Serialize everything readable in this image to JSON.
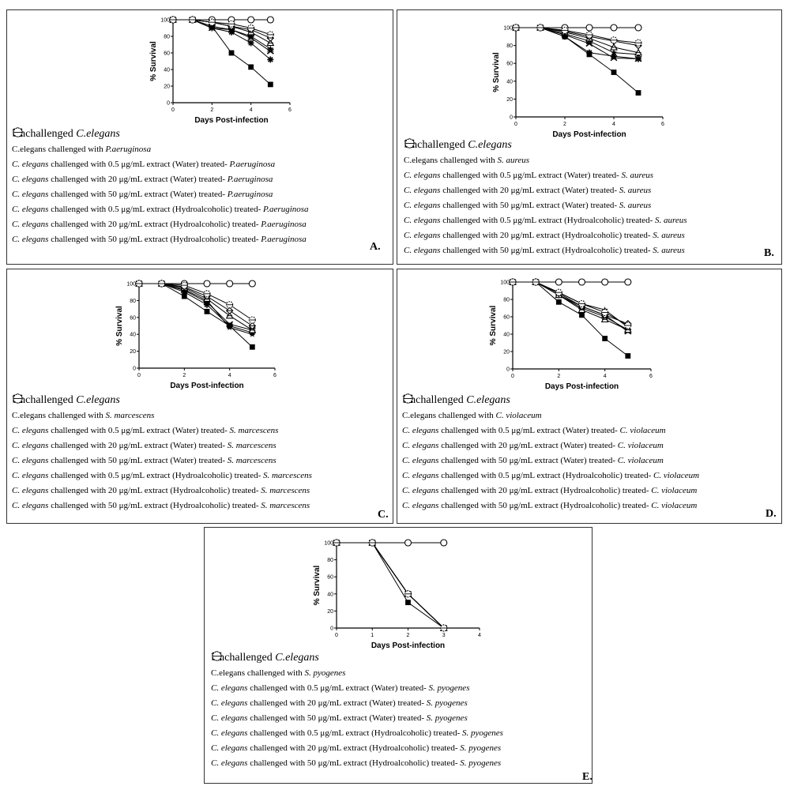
{
  "colors": {
    "line": "#000000",
    "frame": "#333333"
  },
  "legend_templates": {
    "prefix": "C. elegans",
    "challenged_with": "challenged with",
    "unchallenged_prefix": "Unchallenged ",
    "water": "extract (Water) treated-",
    "hydro": "extract (Hydroalcoholic) treated-",
    "doses": [
      "0.5 μg/mL",
      "20 μg/mL",
      "50 μg/mL"
    ]
  },
  "marker_names": [
    "open-circle",
    "filled-square",
    "asterisk",
    "x-cross",
    "filled-star",
    "open-triangle",
    "open-diamond",
    "dotted-circle"
  ],
  "chart_data": [
    {
      "type": "line",
      "panel_label": "A.",
      "pathogen": "P.aeruginosa",
      "xlabel": "Days Post-infection",
      "ylabel": "% Survival",
      "xlim": [
        0,
        6
      ],
      "ylim": [
        0,
        100
      ],
      "xticks": [
        0,
        2,
        4,
        6
      ],
      "yticks": [
        0,
        20,
        40,
        60,
        80,
        100
      ],
      "legend_labels": [
        "Unchallenged C.elegans",
        "C.elegans challenged with P.aeruginosa"
      ],
      "series": [
        {
          "marker": "open-circle",
          "x": [
            0,
            1,
            2,
            3,
            4,
            5
          ],
          "y": [
            100,
            100,
            100,
            100,
            100,
            100
          ]
        },
        {
          "marker": "filled-square",
          "x": [
            0,
            1,
            2,
            3,
            4,
            5
          ],
          "y": [
            100,
            100,
            92,
            60,
            43,
            22
          ]
        },
        {
          "marker": "asterisk",
          "x": [
            0,
            1,
            2,
            3,
            4,
            5
          ],
          "y": [
            100,
            100,
            90,
            85,
            72,
            52
          ]
        },
        {
          "marker": "x-cross",
          "x": [
            0,
            1,
            2,
            3,
            4,
            5
          ],
          "y": [
            100,
            100,
            90,
            88,
            78,
            62
          ]
        },
        {
          "marker": "filled-star",
          "x": [
            0,
            1,
            2,
            3,
            4,
            5
          ],
          "y": [
            100,
            100,
            92,
            88,
            80,
            65
          ]
        },
        {
          "marker": "open-triangle",
          "x": [
            0,
            1,
            2,
            3,
            4,
            5
          ],
          "y": [
            100,
            100,
            97,
            92,
            85,
            72
          ]
        },
        {
          "marker": "open-diamond",
          "x": [
            0,
            1,
            2,
            3,
            4,
            5
          ],
          "y": [
            100,
            100,
            97,
            92,
            88,
            78
          ]
        },
        {
          "marker": "dotted-circle",
          "x": [
            0,
            1,
            2,
            3,
            4,
            5
          ],
          "y": [
            100,
            100,
            97,
            95,
            90,
            82
          ]
        }
      ]
    },
    {
      "type": "line",
      "panel_label": "B.",
      "pathogen": "S. aureus",
      "xlabel": "Days Post-infection",
      "ylabel": "% Survival",
      "xlim": [
        0,
        6
      ],
      "ylim": [
        0,
        100
      ],
      "xticks": [
        0,
        2,
        4,
        6
      ],
      "yticks": [
        0,
        20,
        40,
        60,
        80,
        100
      ],
      "legend_labels": [
        "Unchallenged C.elegans",
        "C.elegans challenged with S. aureus"
      ],
      "series": [
        {
          "marker": "open-circle",
          "x": [
            0,
            1,
            2,
            3,
            4,
            5
          ],
          "y": [
            100,
            100,
            100,
            100,
            100,
            100
          ]
        },
        {
          "marker": "filled-square",
          "x": [
            0,
            1,
            2,
            3,
            4,
            5
          ],
          "y": [
            100,
            100,
            90,
            70,
            50,
            27
          ]
        },
        {
          "marker": "asterisk",
          "x": [
            0,
            1,
            2,
            3,
            4,
            5
          ],
          "y": [
            100,
            100,
            90,
            72,
            68,
            65
          ]
        },
        {
          "marker": "x-cross",
          "x": [
            0,
            1,
            2,
            3,
            4,
            5
          ],
          "y": [
            100,
            100,
            92,
            82,
            66,
            65
          ]
        },
        {
          "marker": "filled-star",
          "x": [
            0,
            1,
            2,
            3,
            4,
            5
          ],
          "y": [
            100,
            100,
            93,
            85,
            72,
            70
          ]
        },
        {
          "marker": "open-triangle",
          "x": [
            0,
            1,
            2,
            3,
            4,
            5
          ],
          "y": [
            100,
            100,
            95,
            88,
            78,
            72
          ]
        },
        {
          "marker": "open-diamond",
          "x": [
            0,
            1,
            2,
            3,
            4,
            5
          ],
          "y": [
            100,
            100,
            96,
            90,
            85,
            80
          ]
        },
        {
          "marker": "dotted-circle",
          "x": [
            0,
            1,
            2,
            3,
            4,
            5
          ],
          "y": [
            100,
            100,
            97,
            92,
            86,
            83
          ]
        }
      ]
    },
    {
      "type": "line",
      "panel_label": "C.",
      "pathogen": "S. marcescens",
      "xlabel": "Days Post-infection",
      "ylabel": "% Survival",
      "xlim": [
        0,
        6
      ],
      "ylim": [
        0,
        100
      ],
      "xticks": [
        0,
        2,
        4,
        6
      ],
      "yticks": [
        0,
        20,
        40,
        60,
        80,
        100
      ],
      "legend_labels": [
        "Unchallenged C.elegans",
        "C.elegans challenged with S. marcescens"
      ],
      "series": [
        {
          "marker": "open-circle",
          "x": [
            0,
            1,
            2,
            3,
            4,
            5
          ],
          "y": [
            100,
            100,
            100,
            100,
            100,
            100
          ]
        },
        {
          "marker": "filled-square",
          "x": [
            0,
            1,
            2,
            3,
            4,
            5
          ],
          "y": [
            100,
            100,
            85,
            67,
            50,
            25
          ]
        },
        {
          "marker": "asterisk",
          "x": [
            0,
            1,
            2,
            3,
            4,
            5
          ],
          "y": [
            100,
            100,
            90,
            75,
            50,
            42
          ]
        },
        {
          "marker": "x-cross",
          "x": [
            0,
            1,
            2,
            3,
            4,
            5
          ],
          "y": [
            100,
            100,
            92,
            78,
            52,
            45
          ]
        },
        {
          "marker": "filled-star",
          "x": [
            0,
            1,
            2,
            3,
            4,
            5
          ],
          "y": [
            100,
            100,
            93,
            80,
            48,
            40
          ]
        },
        {
          "marker": "open-triangle",
          "x": [
            0,
            1,
            2,
            3,
            4,
            5
          ],
          "y": [
            100,
            100,
            95,
            82,
            62,
            45
          ]
        },
        {
          "marker": "open-diamond",
          "x": [
            0,
            1,
            2,
            3,
            4,
            5
          ],
          "y": [
            100,
            100,
            96,
            85,
            68,
            50
          ]
        },
        {
          "marker": "dotted-circle",
          "x": [
            0,
            1,
            2,
            3,
            4,
            5
          ],
          "y": [
            100,
            100,
            98,
            88,
            75,
            57
          ]
        }
      ]
    },
    {
      "type": "line",
      "panel_label": "D.",
      "pathogen": "C. violaceum",
      "xlabel": "Days Post-infection",
      "ylabel": "% Survival",
      "xlim": [
        0,
        6
      ],
      "ylim": [
        0,
        100
      ],
      "xticks": [
        0,
        2,
        4,
        6
      ],
      "yticks": [
        0,
        20,
        40,
        60,
        80,
        100
      ],
      "legend_labels": [
        "Unchallenged C.elegans",
        "C.elegans challenged with C. violaceum"
      ],
      "series": [
        {
          "marker": "open-circle",
          "x": [
            0,
            1,
            2,
            3,
            4,
            5
          ],
          "y": [
            100,
            100,
            100,
            100,
            100,
            100
          ]
        },
        {
          "marker": "filled-square",
          "x": [
            0,
            1,
            2,
            3,
            4,
            5
          ],
          "y": [
            100,
            100,
            77,
            62,
            35,
            15
          ]
        },
        {
          "marker": "asterisk",
          "x": [
            0,
            1,
            2,
            3,
            4,
            5
          ],
          "y": [
            100,
            100,
            85,
            70,
            60,
            45
          ]
        },
        {
          "marker": "x-cross",
          "x": [
            0,
            1,
            2,
            3,
            4,
            5
          ],
          "y": [
            100,
            100,
            85,
            72,
            62,
            43
          ]
        },
        {
          "marker": "filled-star",
          "x": [
            0,
            1,
            2,
            3,
            4,
            5
          ],
          "y": [
            100,
            100,
            88,
            75,
            68,
            48
          ]
        },
        {
          "marker": "open-triangle",
          "x": [
            0,
            1,
            2,
            3,
            4,
            5
          ],
          "y": [
            100,
            100,
            85,
            68,
            57,
            45
          ]
        },
        {
          "marker": "open-diamond",
          "x": [
            0,
            1,
            2,
            3,
            4,
            5
          ],
          "y": [
            100,
            100,
            87,
            72,
            62,
            52
          ]
        },
        {
          "marker": "dotted-circle",
          "x": [
            0,
            1,
            2,
            3,
            4,
            5
          ],
          "y": [
            100,
            100,
            88,
            75,
            65,
            50
          ]
        }
      ]
    },
    {
      "type": "line",
      "panel_label": "E.",
      "pathogen": "S. pyogenes",
      "xlabel": "Days Post-infection",
      "ylabel": "% Survival",
      "xlim": [
        0,
        4
      ],
      "ylim": [
        0,
        100
      ],
      "xticks": [
        0,
        1,
        2,
        3,
        4
      ],
      "yticks": [
        0,
        20,
        40,
        60,
        80,
        100
      ],
      "legend_labels": [
        "Unchallenged C.elegans",
        "C.elegans challenged with S. pyogenes"
      ],
      "series": [
        {
          "marker": "open-circle",
          "x": [
            0,
            1,
            2,
            3
          ],
          "y": [
            100,
            100,
            100,
            100
          ]
        },
        {
          "marker": "filled-square",
          "x": [
            0,
            1,
            2,
            3
          ],
          "y": [
            100,
            100,
            30,
            0
          ]
        },
        {
          "marker": "asterisk",
          "x": [
            0,
            1,
            2,
            3
          ],
          "y": [
            100,
            100,
            40,
            0
          ]
        },
        {
          "marker": "x-cross",
          "x": [
            0,
            1,
            2,
            3
          ],
          "y": [
            100,
            100,
            40,
            0
          ]
        },
        {
          "marker": "filled-star",
          "x": [
            0,
            1,
            2,
            3
          ],
          "y": [
            100,
            100,
            40,
            0
          ]
        },
        {
          "marker": "open-triangle",
          "x": [
            0,
            1,
            2,
            3
          ],
          "y": [
            100,
            100,
            40,
            0
          ]
        },
        {
          "marker": "open-diamond",
          "x": [
            0,
            1,
            2,
            3
          ],
          "y": [
            100,
            100,
            40,
            0
          ]
        },
        {
          "marker": "dotted-circle",
          "x": [
            0,
            1,
            2,
            3
          ],
          "y": [
            100,
            100,
            40,
            0
          ]
        }
      ]
    }
  ]
}
